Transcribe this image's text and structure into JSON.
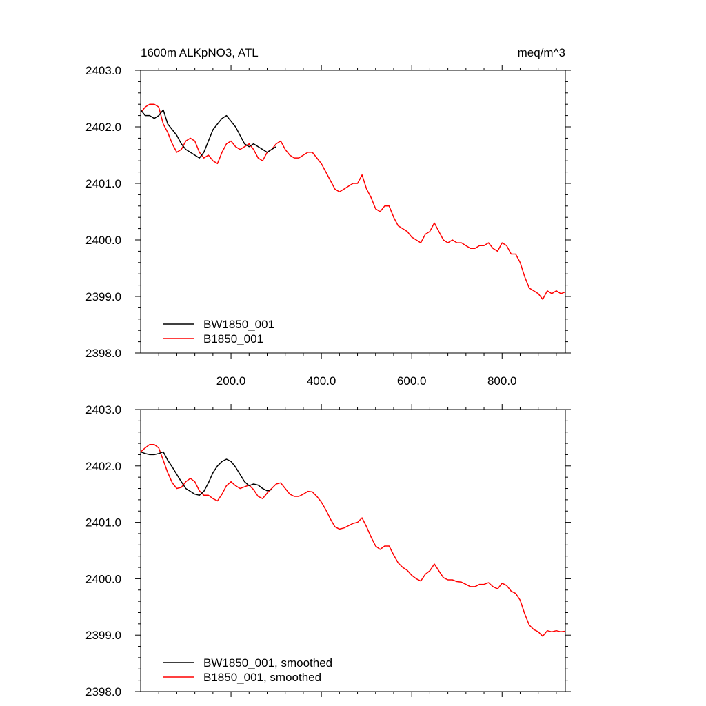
{
  "chart_data": [
    {
      "type": "line",
      "title_left": "1600m ALKpNO3, ATL",
      "title_right": "meq/m^3",
      "xlim": [
        0,
        940
      ],
      "ylim": [
        2398.0,
        2403.0
      ],
      "x_ticks": [
        "200.0",
        "400.0",
        "600.0",
        "800.0"
      ],
      "x_tick_values": [
        200,
        400,
        600,
        800
      ],
      "y_ticks": [
        "2398.0",
        "2399.0",
        "2400.0",
        "2401.0",
        "2402.0",
        "2403.0"
      ],
      "y_tick_values": [
        2398,
        2399,
        2400,
        2401,
        2402,
        2403
      ],
      "legend_position": "bottom-left",
      "series": [
        {
          "name": "BW1850_001",
          "color": "#000000",
          "x": [
            0,
            10,
            20,
            30,
            40,
            50,
            60,
            70,
            80,
            90,
            100,
            110,
            120,
            130,
            140,
            150,
            160,
            170,
            180,
            190,
            200,
            210,
            220,
            230,
            240,
            250,
            260,
            270,
            280,
            290,
            300
          ],
          "y": [
            2402.3,
            2402.2,
            2402.2,
            2402.15,
            2402.2,
            2402.3,
            2402.05,
            2401.95,
            2401.85,
            2401.7,
            2401.6,
            2401.55,
            2401.5,
            2401.45,
            2401.55,
            2401.75,
            2401.95,
            2402.05,
            2402.15,
            2402.2,
            2402.1,
            2402.0,
            2401.85,
            2401.7,
            2401.65,
            2401.7,
            2401.65,
            2401.6,
            2401.55,
            2401.6,
            2401.65
          ]
        },
        {
          "name": "B1850_001",
          "color": "#ff0000",
          "x": [
            0,
            10,
            20,
            30,
            40,
            50,
            60,
            70,
            80,
            90,
            100,
            110,
            120,
            130,
            140,
            150,
            160,
            170,
            180,
            190,
            200,
            210,
            220,
            230,
            240,
            250,
            260,
            270,
            280,
            290,
            300,
            310,
            320,
            330,
            340,
            350,
            360,
            370,
            380,
            390,
            400,
            410,
            420,
            430,
            440,
            450,
            460,
            470,
            480,
            490,
            500,
            510,
            520,
            530,
            540,
            550,
            560,
            570,
            580,
            590,
            600,
            610,
            620,
            630,
            640,
            650,
            660,
            670,
            680,
            690,
            700,
            710,
            720,
            730,
            740,
            750,
            760,
            770,
            780,
            790,
            800,
            810,
            820,
            830,
            840,
            850,
            860,
            870,
            880,
            890,
            900,
            910,
            920,
            930,
            940
          ],
          "y": [
            2402.25,
            2402.35,
            2402.4,
            2402.4,
            2402.35,
            2402.05,
            2401.9,
            2401.7,
            2401.55,
            2401.6,
            2401.75,
            2401.8,
            2401.75,
            2401.55,
            2401.45,
            2401.5,
            2401.4,
            2401.35,
            2401.55,
            2401.7,
            2401.75,
            2401.65,
            2401.6,
            2401.65,
            2401.7,
            2401.6,
            2401.45,
            2401.4,
            2401.55,
            2401.6,
            2401.7,
            2401.75,
            2401.6,
            2401.5,
            2401.45,
            2401.45,
            2401.5,
            2401.55,
            2401.55,
            2401.45,
            2401.35,
            2401.2,
            2401.05,
            2400.9,
            2400.85,
            2400.9,
            2400.95,
            2401.0,
            2401.0,
            2401.15,
            2400.9,
            2400.75,
            2400.55,
            2400.5,
            2400.6,
            2400.6,
            2400.4,
            2400.25,
            2400.2,
            2400.15,
            2400.05,
            2400.0,
            2399.95,
            2400.1,
            2400.15,
            2400.3,
            2400.15,
            2400.0,
            2399.95,
            2400.0,
            2399.95,
            2399.95,
            2399.9,
            2399.85,
            2399.85,
            2399.9,
            2399.9,
            2399.95,
            2399.85,
            2399.8,
            2399.95,
            2399.9,
            2399.75,
            2399.75,
            2399.6,
            2399.35,
            2399.15,
            2399.1,
            2399.05,
            2398.95,
            2399.1,
            2399.05,
            2399.1,
            2399.05,
            2399.08
          ]
        }
      ]
    },
    {
      "type": "line",
      "xlim": [
        0,
        940
      ],
      "ylim": [
        2398.0,
        2403.0
      ],
      "x_tick_values": [
        200,
        400,
        600,
        800
      ],
      "y_ticks": [
        "2398.0",
        "2399.0",
        "2400.0",
        "2401.0",
        "2402.0",
        "2403.0"
      ],
      "y_tick_values": [
        2398,
        2399,
        2400,
        2401,
        2402,
        2403
      ],
      "legend_position": "bottom-left",
      "series": [
        {
          "name": "BW1850_001, smoothed",
          "color": "#000000",
          "x": [
            0,
            10,
            20,
            30,
            40,
            50,
            60,
            70,
            80,
            90,
            100,
            110,
            120,
            130,
            140,
            150,
            160,
            170,
            180,
            190,
            200,
            210,
            220,
            230,
            240,
            250,
            260,
            270,
            280,
            290
          ],
          "y": [
            2402.25,
            2402.22,
            2402.2,
            2402.2,
            2402.22,
            2402.25,
            2402.1,
            2401.98,
            2401.85,
            2401.72,
            2401.6,
            2401.55,
            2401.5,
            2401.48,
            2401.55,
            2401.7,
            2401.88,
            2402.0,
            2402.08,
            2402.12,
            2402.08,
            2401.98,
            2401.85,
            2401.72,
            2401.65,
            2401.68,
            2401.66,
            2401.6,
            2401.56,
            2401.58
          ]
        },
        {
          "name": "B1850_001, smoothed",
          "color": "#ff0000",
          "x": [
            0,
            10,
            20,
            30,
            40,
            50,
            60,
            70,
            80,
            90,
            100,
            110,
            120,
            130,
            140,
            150,
            160,
            170,
            180,
            190,
            200,
            210,
            220,
            230,
            240,
            250,
            260,
            270,
            280,
            290,
            300,
            310,
            320,
            330,
            340,
            350,
            360,
            370,
            380,
            390,
            400,
            410,
            420,
            430,
            440,
            450,
            460,
            470,
            480,
            490,
            500,
            510,
            520,
            530,
            540,
            550,
            560,
            570,
            580,
            590,
            600,
            610,
            620,
            630,
            640,
            650,
            660,
            670,
            680,
            690,
            700,
            710,
            720,
            730,
            740,
            750,
            760,
            770,
            780,
            790,
            800,
            810,
            820,
            830,
            840,
            850,
            860,
            870,
            880,
            890,
            900,
            910,
            920,
            930,
            940
          ],
          "y": [
            2402.25,
            2402.32,
            2402.38,
            2402.38,
            2402.32,
            2402.1,
            2401.88,
            2401.7,
            2401.6,
            2401.62,
            2401.72,
            2401.78,
            2401.72,
            2401.56,
            2401.48,
            2401.48,
            2401.42,
            2401.38,
            2401.5,
            2401.65,
            2401.72,
            2401.65,
            2401.6,
            2401.63,
            2401.66,
            2401.58,
            2401.46,
            2401.42,
            2401.52,
            2401.6,
            2401.68,
            2401.7,
            2401.6,
            2401.5,
            2401.46,
            2401.46,
            2401.5,
            2401.55,
            2401.54,
            2401.46,
            2401.36,
            2401.22,
            2401.06,
            2400.92,
            2400.88,
            2400.9,
            2400.94,
            2400.98,
            2401.0,
            2401.08,
            2400.92,
            2400.74,
            2400.58,
            2400.52,
            2400.58,
            2400.58,
            2400.42,
            2400.28,
            2400.2,
            2400.15,
            2400.06,
            2400.0,
            2399.96,
            2400.08,
            2400.14,
            2400.26,
            2400.14,
            2400.02,
            2399.98,
            2399.98,
            2399.95,
            2399.94,
            2399.9,
            2399.86,
            2399.86,
            2399.9,
            2399.9,
            2399.93,
            2399.86,
            2399.82,
            2399.92,
            2399.88,
            2399.78,
            2399.74,
            2399.62,
            2399.38,
            2399.18,
            2399.1,
            2399.06,
            2398.98,
            2399.08,
            2399.06,
            2399.08,
            2399.06,
            2399.07
          ]
        }
      ]
    }
  ]
}
